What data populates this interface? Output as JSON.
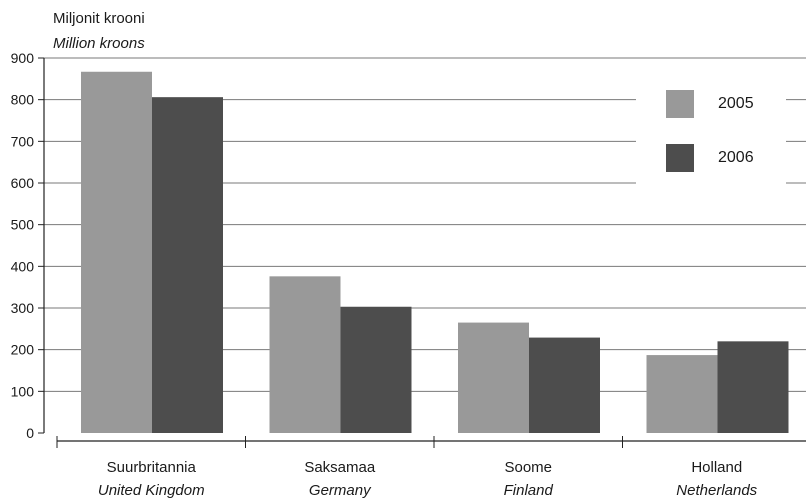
{
  "chart_data": {
    "type": "bar",
    "unit_label_et": "Miljonit krooni",
    "unit_label_en": "Million kroons",
    "categories": [
      {
        "et": "Suurbritannia",
        "en": "United Kingdom"
      },
      {
        "et": "Saksamaa",
        "en": "Germany"
      },
      {
        "et": "Soome",
        "en": "Finland"
      },
      {
        "et": "Holland",
        "en": "Netherlands"
      }
    ],
    "series": [
      {
        "name": "2005",
        "color": "#999999",
        "values": [
          867,
          376,
          265,
          187
        ]
      },
      {
        "name": "2006",
        "color": "#4d4d4d",
        "values": [
          806,
          303,
          229,
          220
        ]
      }
    ],
    "ylim": [
      0,
      900
    ],
    "yticks": [
      0,
      100,
      200,
      300,
      400,
      500,
      600,
      700,
      800,
      900
    ],
    "grid": true,
    "legend_position": "top-right"
  }
}
